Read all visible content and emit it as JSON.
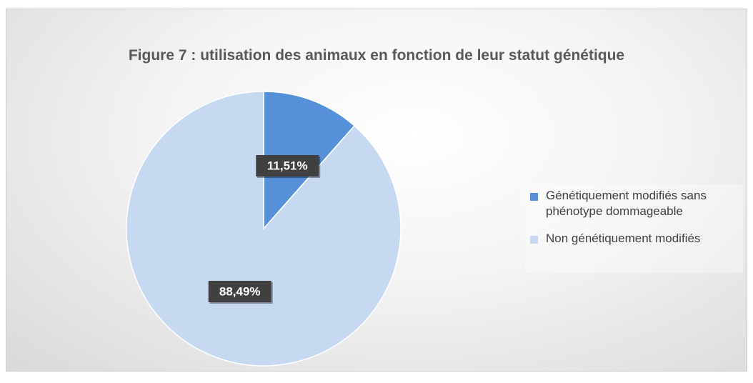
{
  "chart_data": {
    "type": "pie",
    "title": "Figure 7 : utilisation des animaux en fonction de leur statut génétique",
    "categories": [
      "Génétiquement modifiés sans phénotype dommageable",
      "Non génétiquement modifiés"
    ],
    "values": [
      11.51,
      88.49
    ],
    "value_labels": [
      "11,51%",
      "88,49%"
    ],
    "colors": [
      "#5590d9",
      "#c6d9f1"
    ],
    "start_angle": 0,
    "direction": "clockwise",
    "legend": "right"
  }
}
